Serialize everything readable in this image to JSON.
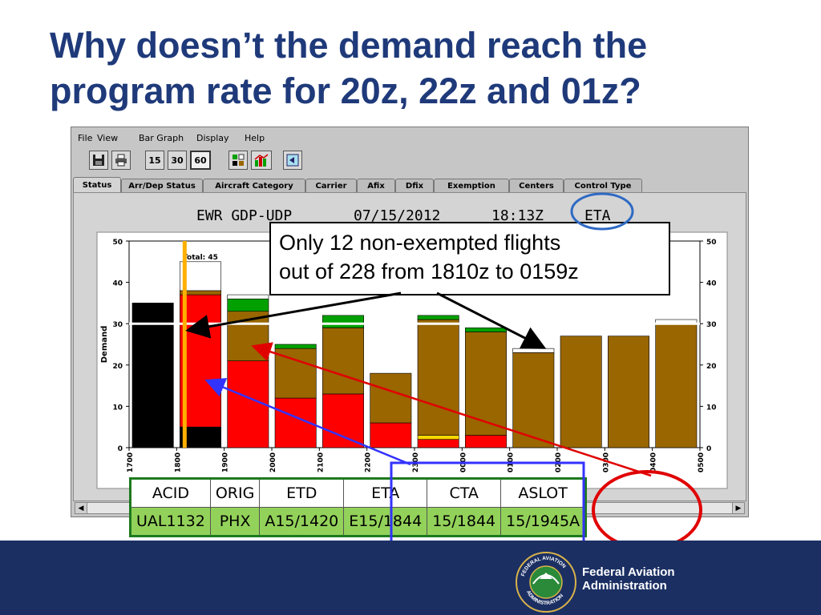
{
  "slide": {
    "title": "Why doesn’t the demand reach the program rate for 20z, 22z and 01z?"
  },
  "app": {
    "menu": [
      "File",
      "View",
      "Bar Graph",
      "Display",
      "Help"
    ],
    "toolbar": {
      "save_icon": "floppy-disk-icon",
      "print_icon": "printer-icon",
      "interval_buttons": [
        "15",
        "30",
        "60"
      ],
      "selected_interval": "60"
    },
    "tabs": [
      "Status",
      "Arr/Dep Status",
      "Aircraft Category",
      "Carrier",
      "Afix",
      "Dfix",
      "Exemption",
      "Centers",
      "Control Type"
    ],
    "active_tab": "Status",
    "header": {
      "airport": "EWR GDP-UDP",
      "date": "07/15/2012",
      "time": "18:13Z",
      "mode": "ETA"
    }
  },
  "chart_data": {
    "type": "bar",
    "stacked": true,
    "ylabel": "Demand",
    "ylim": [
      0,
      50
    ],
    "yticks": [
      0,
      10,
      20,
      30,
      40,
      50
    ],
    "program_rate": 30,
    "categories": [
      "1700",
      "1800",
      "1900",
      "2000",
      "2100",
      "2200",
      "2300",
      "0000",
      "0100",
      "0200",
      "0300",
      "0400",
      "0500"
    ],
    "bar_labels": [
      {
        "category": "1800",
        "text": "Total: 45"
      }
    ],
    "colors": {
      "active": "#000000",
      "red": "#ff0000",
      "brown": "#996600",
      "green": "#00a000",
      "yellow": "#ffd700",
      "white": "#ffffff"
    },
    "bars": [
      {
        "category": "1700",
        "segments": [
          {
            "color": "active",
            "value": 35
          }
        ]
      },
      {
        "category": "1800",
        "segments": [
          {
            "color": "active",
            "value": 5
          },
          {
            "color": "red",
            "value": 32
          },
          {
            "color": "brown",
            "value": 1
          },
          {
            "color": "white",
            "value": 7
          }
        ]
      },
      {
        "category": "1900",
        "segments": [
          {
            "color": "red",
            "value": 21
          },
          {
            "color": "brown",
            "value": 12
          },
          {
            "color": "green",
            "value": 3
          },
          {
            "color": "white",
            "value": 1
          }
        ]
      },
      {
        "category": "2000",
        "segments": [
          {
            "color": "red",
            "value": 12
          },
          {
            "color": "brown",
            "value": 12
          },
          {
            "color": "green",
            "value": 1
          }
        ]
      },
      {
        "category": "2100",
        "segments": [
          {
            "color": "red",
            "value": 13
          },
          {
            "color": "brown",
            "value": 16
          },
          {
            "color": "green",
            "value": 3
          }
        ]
      },
      {
        "category": "2200",
        "segments": [
          {
            "color": "red",
            "value": 6
          },
          {
            "color": "brown",
            "value": 12
          }
        ]
      },
      {
        "category": "2300",
        "segments": [
          {
            "color": "red",
            "value": 2
          },
          {
            "color": "yellow",
            "value": 1
          },
          {
            "color": "brown",
            "value": 28
          },
          {
            "color": "green",
            "value": 1
          }
        ]
      },
      {
        "category": "0000",
        "segments": [
          {
            "color": "red",
            "value": 3
          },
          {
            "color": "brown",
            "value": 25
          },
          {
            "color": "green",
            "value": 1
          }
        ]
      },
      {
        "category": "0100",
        "segments": [
          {
            "color": "brown",
            "value": 23
          },
          {
            "color": "white",
            "value": 1
          }
        ]
      },
      {
        "category": "0200",
        "segments": [
          {
            "color": "brown",
            "value": 27
          }
        ]
      },
      {
        "category": "0300",
        "segments": [
          {
            "color": "brown",
            "value": 27
          }
        ]
      },
      {
        "category": "0400",
        "segments": [
          {
            "color": "brown",
            "value": 30
          },
          {
            "color": "white",
            "value": 1
          }
        ]
      }
    ]
  },
  "callout": {
    "lines": [
      "Only 12 non-exempted flights",
      "out of 228 from 1810z to 0159z"
    ]
  },
  "flight_table": {
    "columns": [
      "ACID",
      "ORIG",
      "ETD",
      "ETA",
      "CTA",
      "ASLOT"
    ],
    "rows": [
      [
        "UAL1132",
        "PHX",
        "A15/1420",
        "E15/1844",
        "15/1844",
        "15/1945A"
      ]
    ]
  },
  "footer": {
    "org_line1": "Federal Aviation",
    "org_line2": "Administration",
    "seal_text_top": "FEDERAL AVIATION",
    "seal_text_bottom": "ADMINISTRATION"
  }
}
